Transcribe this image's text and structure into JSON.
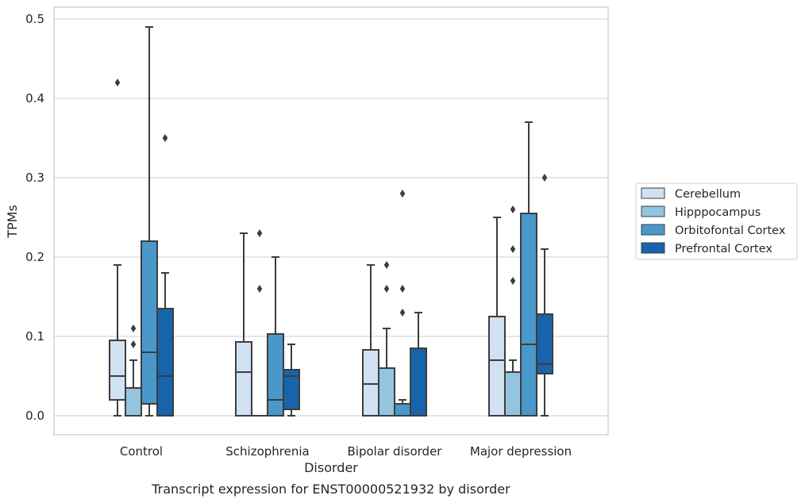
{
  "chart_data": {
    "type": "box",
    "caption": "Transcript expression for ENST00000521932 by disorder",
    "xlabel": "Disorder",
    "ylabel": "TPMs",
    "ylim": [
      -0.023,
      0.515
    ],
    "yticks": [
      0.0,
      0.1,
      0.2,
      0.3,
      0.4,
      0.5
    ],
    "ytick_labels": [
      "0.0",
      "0.1",
      "0.2",
      "0.3",
      "0.4",
      "0.5"
    ],
    "grid": "horizontal",
    "legend_position": "right",
    "categories": [
      "Control",
      "Schizophrenia",
      "Bipolar disorder",
      "Major depression"
    ],
    "series": [
      {
        "name": "Cerebellum",
        "color": "#d0e1f2",
        "boxes": [
          {
            "whislo": 0.0,
            "q1": 0.02,
            "med": 0.05,
            "q3": 0.095,
            "whishi": 0.19,
            "fliers": [
              0.42
            ]
          },
          {
            "whislo": 0.0,
            "q1": 0.0,
            "med": 0.055,
            "q3": 0.093,
            "whishi": 0.23,
            "fliers": []
          },
          {
            "whislo": 0.0,
            "q1": 0.0,
            "med": 0.04,
            "q3": 0.083,
            "whishi": 0.19,
            "fliers": []
          },
          {
            "whislo": 0.0,
            "q1": 0.0,
            "med": 0.07,
            "q3": 0.125,
            "whishi": 0.25,
            "fliers": []
          }
        ]
      },
      {
        "name": "Hipppocampus",
        "color": "#94c4df",
        "boxes": [
          {
            "whislo": 0.0,
            "q1": 0.0,
            "med": 0.0,
            "q3": 0.035,
            "whishi": 0.07,
            "fliers": [
              0.09,
              0.11
            ]
          },
          {
            "whislo": 0.0,
            "q1": 0.0,
            "med": 0.0,
            "q3": 0.0,
            "whishi": 0.0,
            "fliers": [
              0.16,
              0.23
            ]
          },
          {
            "whislo": 0.0,
            "q1": 0.0,
            "med": 0.0,
            "q3": 0.06,
            "whishi": 0.11,
            "fliers": [
              0.16,
              0.19
            ]
          },
          {
            "whislo": 0.0,
            "q1": 0.0,
            "med": 0.0,
            "q3": 0.055,
            "whishi": 0.07,
            "fliers": [
              0.17,
              0.21,
              0.26
            ]
          }
        ]
      },
      {
        "name": "Orbitofontal Cortex",
        "color": "#4a98c9",
        "boxes": [
          {
            "whislo": 0.0,
            "q1": 0.015,
            "med": 0.08,
            "q3": 0.22,
            "whishi": 0.49,
            "fliers": []
          },
          {
            "whislo": 0.0,
            "q1": 0.0,
            "med": 0.02,
            "q3": 0.103,
            "whishi": 0.2,
            "fliers": []
          },
          {
            "whislo": 0.0,
            "q1": 0.0,
            "med": 0.0,
            "q3": 0.015,
            "whishi": 0.02,
            "fliers": [
              0.13,
              0.16,
              0.28
            ]
          },
          {
            "whislo": 0.0,
            "q1": 0.0,
            "med": 0.09,
            "q3": 0.255,
            "whishi": 0.37,
            "fliers": []
          }
        ]
      },
      {
        "name": "Prefrontal Cortex",
        "color": "#1764ab",
        "boxes": [
          {
            "whislo": 0.0,
            "q1": 0.0,
            "med": 0.05,
            "q3": 0.135,
            "whishi": 0.18,
            "fliers": [
              0.35
            ]
          },
          {
            "whislo": 0.0,
            "q1": 0.008,
            "med": 0.05,
            "q3": 0.058,
            "whishi": 0.09,
            "fliers": []
          },
          {
            "whislo": 0.0,
            "q1": 0.0,
            "med": 0.0,
            "q3": 0.085,
            "whishi": 0.13,
            "fliers": []
          },
          {
            "whislo": 0.0,
            "q1": 0.053,
            "med": 0.065,
            "q3": 0.128,
            "whishi": 0.21,
            "fliers": [
              0.3
            ]
          }
        ]
      }
    ]
  }
}
